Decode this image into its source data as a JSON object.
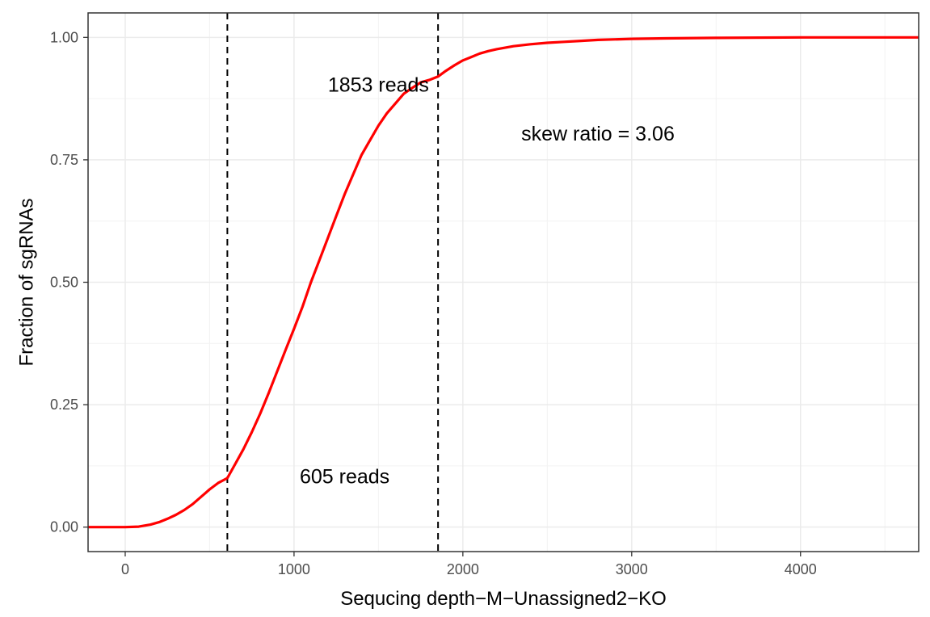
{
  "chart_data": {
    "type": "line",
    "xlabel": "Sequcing depth−M−Unassigned2−KO",
    "ylabel": "Fraction of sgRNAs",
    "xlim": [
      -220,
      4700
    ],
    "ylim": [
      -0.05,
      1.05
    ],
    "x_ticks": [
      0,
      1000,
      2000,
      3000,
      4000
    ],
    "x_tick_labels": [
      "0",
      "1000",
      "2000",
      "3000",
      "4000"
    ],
    "y_ticks": [
      0,
      0.25,
      0.5,
      0.75,
      1.0
    ],
    "y_tick_labels": [
      "0.00",
      "0.25",
      "0.50",
      "0.75",
      "1.00"
    ],
    "grid": true,
    "series": [
      {
        "color": "#ff0000",
        "x": [
          -220,
          0,
          80,
          150,
          200,
          250,
          300,
          350,
          400,
          450,
          500,
          550,
          605,
          650,
          700,
          750,
          800,
          850,
          900,
          950,
          1000,
          1050,
          1100,
          1150,
          1200,
          1250,
          1300,
          1350,
          1400,
          1450,
          1500,
          1550,
          1600,
          1650,
          1700,
          1750,
          1800,
          1853,
          1900,
          1950,
          2000,
          2050,
          2100,
          2150,
          2200,
          2300,
          2400,
          2500,
          2600,
          2700,
          2800,
          3000,
          3200,
          3500,
          4000,
          4700
        ],
        "y": [
          0,
          0,
          0.001,
          0.005,
          0.01,
          0.017,
          0.025,
          0.035,
          0.047,
          0.062,
          0.077,
          0.09,
          0.1,
          0.128,
          0.159,
          0.194,
          0.232,
          0.274,
          0.318,
          0.362,
          0.405,
          0.45,
          0.5,
          0.545,
          0.59,
          0.635,
          0.68,
          0.72,
          0.76,
          0.79,
          0.82,
          0.845,
          0.865,
          0.885,
          0.897,
          0.908,
          0.913,
          0.92,
          0.932,
          0.943,
          0.953,
          0.96,
          0.967,
          0.972,
          0.976,
          0.982,
          0.986,
          0.989,
          0.991,
          0.993,
          0.995,
          0.997,
          0.998,
          0.999,
          1.0,
          1.0
        ]
      }
    ],
    "vlines": [
      605,
      1853
    ],
    "annotations": [
      {
        "text": "1853 reads",
        "x": 1500,
        "y": 0.9
      },
      {
        "text": "605 reads",
        "x": 1300,
        "y": 0.1
      },
      {
        "text": "skew ratio = 3.06",
        "x": 2800,
        "y": 0.8
      }
    ]
  }
}
